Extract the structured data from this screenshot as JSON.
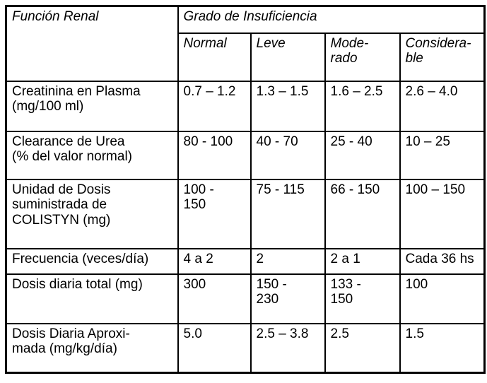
{
  "table": {
    "header": {
      "function_label": "Función Renal",
      "grade_label": "Grado de Insuficiencia",
      "grades": [
        "Normal",
        "Leve",
        "Mode-\nrado",
        "Considera-\nble"
      ]
    },
    "rows": [
      {
        "label": "Creatinina en Plasma\n(mg/100 ml)",
        "values": [
          "0.7 – 1.2",
          "1.3 – 1.5",
          "1.6 – 2.5",
          "2.6 – 4.0"
        ]
      },
      {
        "label": "Clearance de Urea\n(% del valor normal)",
        "values": [
          "80 - 100",
          "40 - 70",
          "25 - 40",
          "10 – 25"
        ]
      },
      {
        "label": "Unidad de Dosis\nsuministrada de\nCOLISTYN (mg)",
        "values": [
          "100 -\n150",
          "75 - 115",
          "66 - 150",
          "100 – 150"
        ]
      },
      {
        "label": "Frecuencia (veces/día)",
        "values": [
          "4 a 2",
          "2",
          "2 a 1",
          "Cada 36 hs"
        ]
      },
      {
        "label": "Dosis diaria total (mg)",
        "values": [
          "300",
          "150 -\n230",
          "133 -\n150",
          "100"
        ]
      },
      {
        "label": "Dosis Diaria Aproxi-\nmada (mg/kg/día)",
        "values": [
          "5.0",
          "2.5 – 3.8",
          "2.5",
          "1.5"
        ]
      }
    ],
    "colors": {
      "border": "#000000",
      "text": "#000000",
      "background": "#ffffff"
    }
  }
}
